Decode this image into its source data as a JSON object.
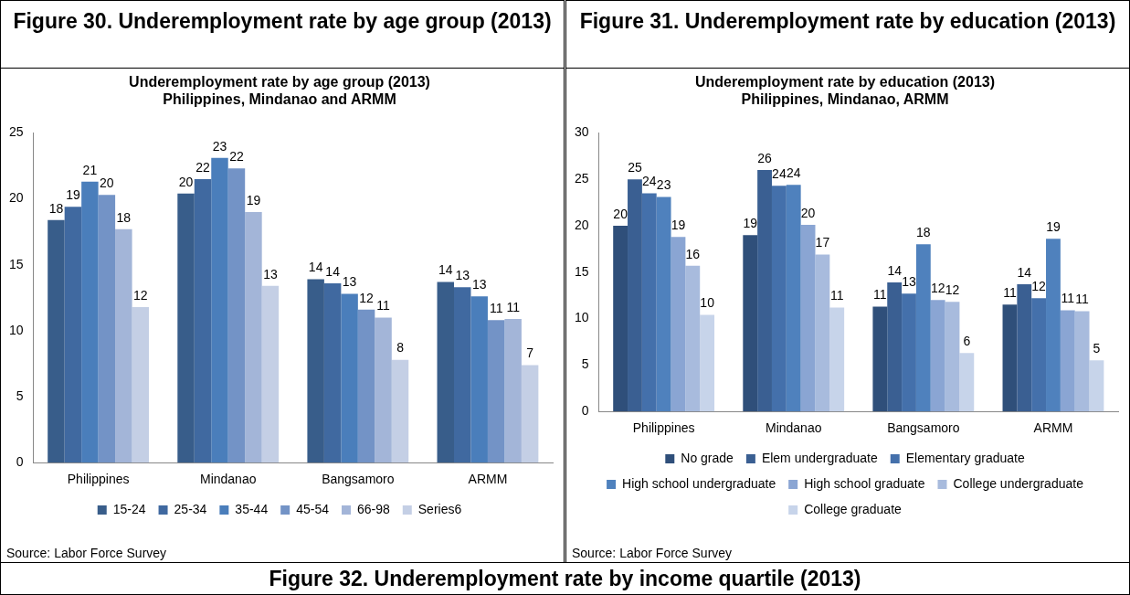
{
  "chart_data": [
    {
      "type": "bar",
      "title": "Figure 30. Underemployment rate by age group (2013)",
      "subtitle": "Underemployment rate by age group (2013)\nPhilippines, Mindanao and ARMM",
      "categories": [
        "Philippines",
        "Mindanao",
        "Bangsamoro",
        "ARMM"
      ],
      "ylim": [
        0,
        25
      ],
      "yticks": [
        0,
        5,
        10,
        15,
        20,
        25
      ],
      "grid": false,
      "legend": "bottom",
      "annotations": [
        "Source: Labor Force Survey"
      ],
      "series": [
        {
          "name": "15-24",
          "color": "#385d8a",
          "values": [
            18.4,
            20.4,
            13.9,
            13.7
          ],
          "value_labels": [
            "18",
            "20",
            "14",
            "14"
          ]
        },
        {
          "name": "25-34",
          "color": "#4069a0",
          "values": [
            19.4,
            21.5,
            13.6,
            13.3
          ],
          "value_labels": [
            "19",
            "22",
            "14",
            "13"
          ]
        },
        {
          "name": "35-44",
          "color": "#4a7ebb",
          "values": [
            21.3,
            23.1,
            12.8,
            12.6
          ],
          "value_labels": [
            "21",
            "23",
            "13",
            "13"
          ]
        },
        {
          "name": "45-54",
          "color": "#7393c6",
          "values": [
            20.3,
            22.3,
            11.6,
            10.8
          ],
          "value_labels": [
            "20",
            "22",
            "12",
            "11"
          ]
        },
        {
          "name": "66-98",
          "color": "#a3b5d8",
          "values": [
            17.7,
            19.0,
            11.0,
            10.9
          ],
          "value_labels": [
            "18",
            "19",
            "11",
            "11"
          ]
        },
        {
          "name": "Series6",
          "color": "#c4cfe5",
          "values": [
            11.8,
            13.4,
            7.8,
            7.4
          ],
          "value_labels": [
            "12",
            "13",
            "8",
            "7"
          ]
        }
      ]
    },
    {
      "type": "bar",
      "title": "Figure 31. Underemployment rate by education (2013)",
      "subtitle": "Underemployment rate by education (2013)\nPhilippines, Mindanao, ARMM",
      "categories": [
        "Philippines",
        "Mindanao",
        "Bangsamoro",
        "ARMM"
      ],
      "ylim": [
        0,
        30
      ],
      "yticks": [
        0,
        5,
        10,
        15,
        20,
        25,
        30
      ],
      "grid": false,
      "legend": "bottom",
      "annotations": [
        "Source: Labor Force Survey"
      ],
      "series": [
        {
          "name": "No grade",
          "color": "#2f4f7a",
          "values": [
            20.0,
            19.0,
            11.3,
            11.5
          ],
          "value_labels": [
            "20",
            "19",
            "11",
            "11"
          ]
        },
        {
          "name": "Elem undergraduate",
          "color": "#3a5f92",
          "values": [
            25.0,
            26.0,
            13.9,
            13.7
          ],
          "value_labels": [
            "25",
            "26",
            "14",
            "14"
          ]
        },
        {
          "name": "Elementary graduate",
          "color": "#4470ab",
          "values": [
            23.5,
            24.3,
            12.7,
            12.2
          ],
          "value_labels": [
            "24",
            "24",
            "13",
            "12"
          ]
        },
        {
          "name": "High school undergraduate",
          "color": "#4f81bd",
          "values": [
            23.1,
            24.4,
            18.0,
            18.6
          ],
          "value_labels": [
            "23",
            "24",
            "18",
            "19"
          ]
        },
        {
          "name": "High school graduate",
          "color": "#8aa5d3",
          "values": [
            18.8,
            20.1,
            12.0,
            10.9
          ],
          "value_labels": [
            "19",
            "20",
            "12",
            "11"
          ]
        },
        {
          "name": "College undergraduate",
          "color": "#a8bbdd",
          "values": [
            15.7,
            16.9,
            11.8,
            10.8
          ],
          "value_labels": [
            "16",
            "17",
            "12",
            "11"
          ]
        },
        {
          "name": "College graduate",
          "color": "#c7d4ea",
          "values": [
            10.4,
            11.2,
            6.3,
            5.5
          ],
          "value_labels": [
            "10",
            "11",
            "6",
            "5"
          ]
        }
      ]
    },
    {
      "type": "other",
      "title": "Figure 32. Underemployment rate by income quartile (2013)"
    }
  ]
}
